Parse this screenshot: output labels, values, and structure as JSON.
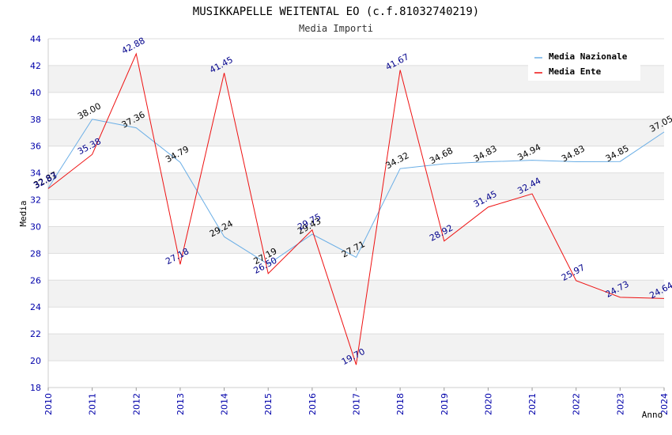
{
  "chart_data": {
    "type": "line",
    "title": "MUSIKKAPELLE WEITENTAL EO (c.f.81032740219)",
    "subtitle": "Media Importi",
    "xlabel": "Anno",
    "ylabel": "Media",
    "ylim": [
      18,
      44
    ],
    "yticks": [
      "18",
      "20",
      "22",
      "24",
      "26",
      "28",
      "30",
      "32",
      "34",
      "36",
      "38",
      "40",
      "42",
      "44"
    ],
    "x": [
      "2010",
      "2011",
      "2012",
      "2013",
      "2014",
      "2015",
      "2016",
      "2017",
      "2018",
      "2019",
      "2020",
      "2021",
      "2022",
      "2023",
      "2024"
    ],
    "series": [
      {
        "name": "Media Nazionale",
        "color": "#6aaee6",
        "values": [
          32.87,
          38.0,
          37.36,
          34.79,
          29.24,
          27.19,
          29.43,
          27.71,
          34.32,
          34.68,
          34.83,
          34.94,
          34.83,
          34.85,
          37.05
        ],
        "labels": [
          "32.87",
          "38.00",
          "37.36",
          "34.79",
          "29.24",
          "27.19",
          "29.43",
          "27.71",
          "34.32",
          "34.68",
          "34.83",
          "34.94",
          "34.83",
          "34.85",
          "37.05"
        ]
      },
      {
        "name": "Media Ente",
        "color": "#ee1111",
        "values": [
          32.83,
          35.38,
          42.88,
          27.18,
          41.45,
          26.5,
          29.75,
          19.7,
          41.67,
          28.92,
          31.45,
          32.44,
          25.97,
          24.73,
          24.64
        ],
        "labels": [
          "32.83",
          "35.38",
          "42.88",
          "27.18",
          "41.45",
          "26.50",
          "29.75",
          "19.70",
          "41.67",
          "28.92",
          "31.45",
          "32.44",
          "25.97",
          "24.73",
          "24.64"
        ]
      }
    ],
    "legend": "top-right",
    "grid": true
  }
}
